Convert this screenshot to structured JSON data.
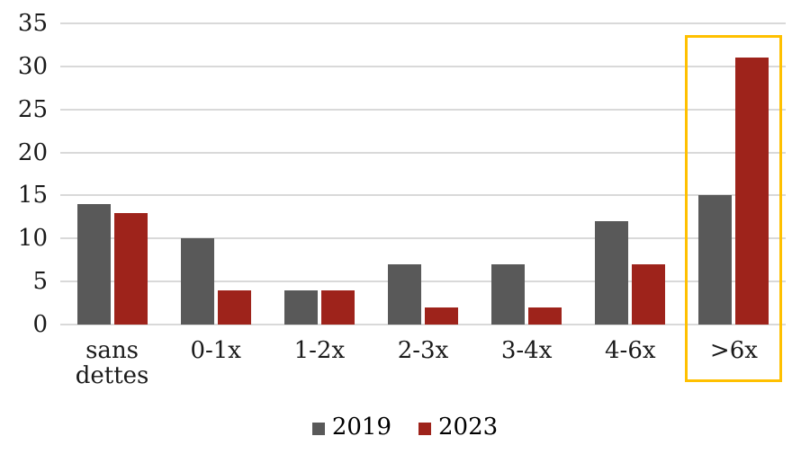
{
  "chart_data": {
    "type": "bar",
    "categories": [
      "sans dettes",
      "0-1x",
      "1-2x",
      "2-3x",
      "3-4x",
      "4-6x",
      ">6x"
    ],
    "series": [
      {
        "name": "2019",
        "color": "#595959",
        "values": [
          14,
          10,
          4,
          7,
          7,
          12,
          15
        ]
      },
      {
        "name": "2023",
        "color": "#9E231B",
        "values": [
          13,
          4,
          4,
          2,
          2,
          7,
          31
        ]
      }
    ],
    "ylim": [
      0,
      35
    ],
    "yticks": [
      0,
      5,
      10,
      15,
      20,
      25,
      30,
      35
    ],
    "grid": true,
    "gridline_color": "#D9D9D9",
    "text_color": "#1a1a1a",
    "background": "#FFFFFF",
    "legend_position": "bottom",
    "highlight": {
      "category": ">6x",
      "color": "#FFC000"
    }
  }
}
